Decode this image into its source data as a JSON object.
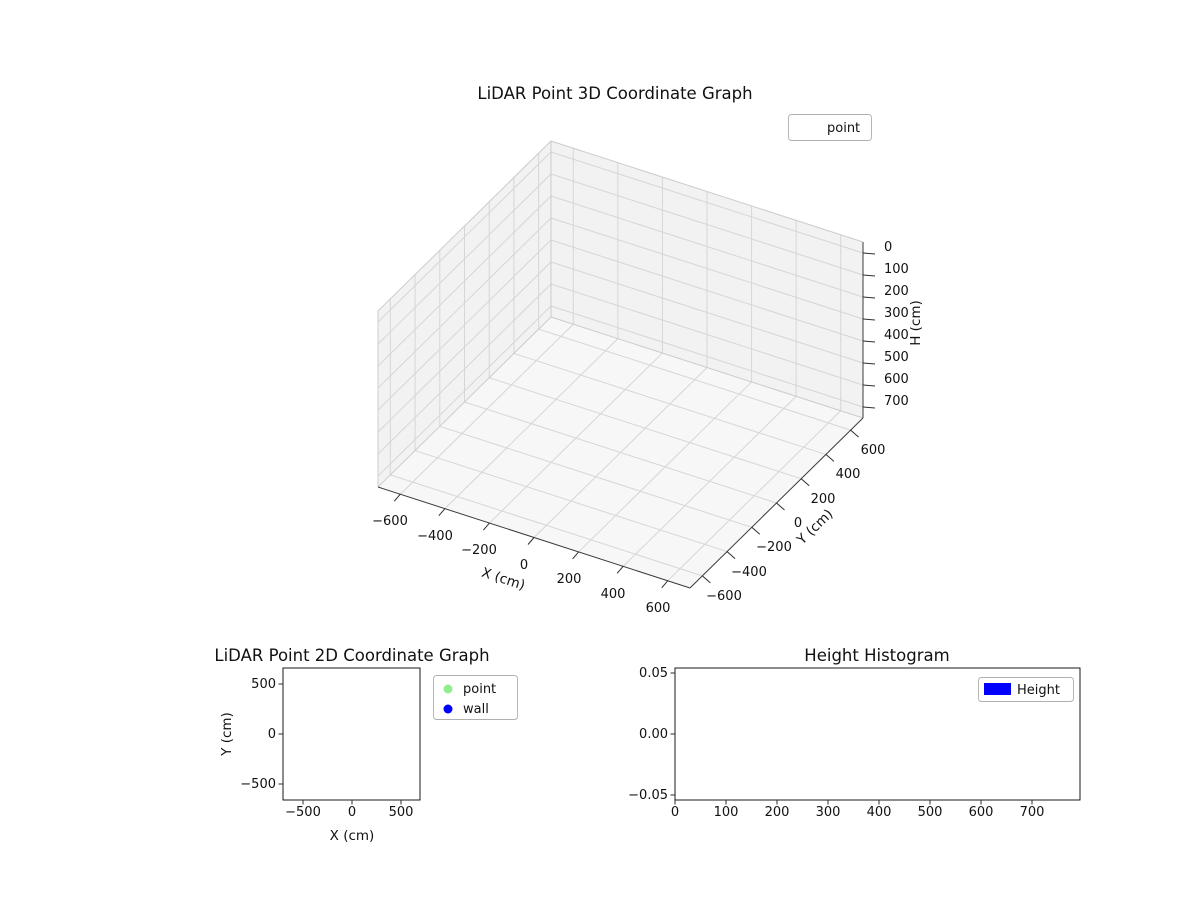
{
  "plot3d": {
    "title": "LiDAR Point 3D Coordinate Graph",
    "xlabel": "X (cm)",
    "ylabel": "Y (cm)",
    "zlabel": "H (cm)",
    "x_ticks": [
      "−600",
      "−400",
      "−200",
      "0",
      "200",
      "400",
      "600"
    ],
    "y_ticks": [
      "−600",
      "−400",
      "−200",
      "0",
      "200",
      "400",
      "600"
    ],
    "z_ticks": [
      "0",
      "100",
      "200",
      "300",
      "400",
      "500",
      "600",
      "700"
    ],
    "legend": {
      "label": "point"
    }
  },
  "plot2d": {
    "title": "LiDAR Point 2D Coordinate Graph",
    "xlabel": "X (cm)",
    "ylabel": "Y (cm)",
    "x_ticks": [
      "−500",
      "0",
      "500"
    ],
    "y_ticks": [
      "500",
      "0",
      "−500"
    ],
    "legend": [
      {
        "label": "point",
        "color": "#90ee90"
      },
      {
        "label": "wall",
        "color": "#0000ff"
      }
    ]
  },
  "hist": {
    "title": "Height Histogram",
    "x_ticks": [
      "0",
      "100",
      "200",
      "300",
      "400",
      "500",
      "600",
      "700"
    ],
    "y_ticks": [
      "0.05",
      "0.00",
      "−0.05"
    ],
    "legend": {
      "label": "Height",
      "color": "#0000ff"
    }
  },
  "chart_data": [
    {
      "type": "scatter",
      "projection": "3d",
      "title": "LiDAR Point 3D Coordinate Graph",
      "xlabel": "X (cm)",
      "ylabel": "Y (cm)",
      "zlabel": "H (cm)",
      "xlim": [
        -700,
        700
      ],
      "ylim": [
        -700,
        700
      ],
      "zlim": [
        -50,
        750
      ],
      "xticks": [
        -600,
        -400,
        -200,
        0,
        200,
        400,
        600
      ],
      "yticks": [
        -600,
        -400,
        -200,
        0,
        200,
        400,
        600
      ],
      "zticks": [
        0,
        100,
        200,
        300,
        400,
        500,
        600,
        700
      ],
      "zaxis_inverted": true,
      "grid": true,
      "legend": [
        "point"
      ],
      "legend_position": "upper right",
      "series": [
        {
          "name": "point",
          "x": [],
          "y": [],
          "z": []
        }
      ]
    },
    {
      "type": "scatter",
      "title": "LiDAR Point 2D Coordinate Graph",
      "xlabel": "X (cm)",
      "ylabel": "Y (cm)",
      "xlim": [
        -700,
        700
      ],
      "ylim": [
        -660,
        660
      ],
      "xticks": [
        -500,
        0,
        500
      ],
      "yticks": [
        -500,
        0,
        500
      ],
      "grid": false,
      "legend": [
        "point",
        "wall"
      ],
      "legend_position": "outside upper right",
      "series": [
        {
          "name": "point",
          "color": "#90ee90",
          "x": [],
          "y": []
        },
        {
          "name": "wall",
          "color": "#0000ff",
          "x": [],
          "y": []
        }
      ]
    },
    {
      "type": "bar",
      "title": "Height Histogram",
      "xlabel": "",
      "ylabel": "",
      "xlim": [
        0,
        795
      ],
      "ylim": [
        -0.055,
        0.055
      ],
      "xticks": [
        0,
        100,
        200,
        300,
        400,
        500,
        600,
        700
      ],
      "yticks": [
        -0.05,
        0.0,
        0.05
      ],
      "grid": false,
      "legend": [
        "Height"
      ],
      "legend_position": "upper right",
      "series": [
        {
          "name": "Height",
          "color": "#0000ff",
          "values": []
        }
      ]
    }
  ]
}
